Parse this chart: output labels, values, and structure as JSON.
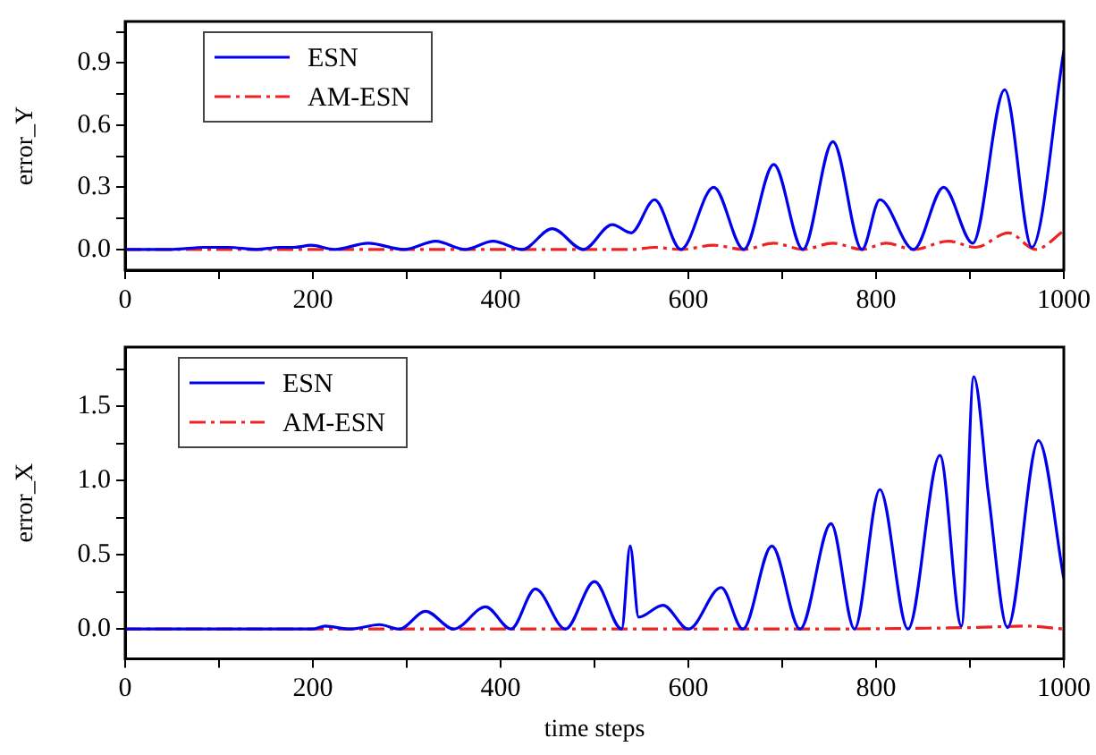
{
  "chart_data": [
    {
      "type": "line",
      "ylabel": "error_Y",
      "legend": "top left",
      "xlim": [
        0,
        1000
      ],
      "ylim": [
        -0.1,
        1.1
      ],
      "xticks": [
        0,
        {
          "value": 100,
          "label": null
        },
        200,
        {
          "value": 300,
          "label": null
        },
        400,
        {
          "value": 500,
          "label": null
        },
        600,
        {
          "value": 700,
          "label": null
        },
        800,
        {
          "value": 900,
          "label": null
        },
        1000
      ],
      "yticks": [
        {
          "value": 0,
          "label": "0.0"
        },
        {
          "value": 0.15,
          "label": null
        },
        0.3,
        {
          "value": 0.45,
          "label": null
        },
        0.6,
        {
          "value": 0.75,
          "label": null
        },
        0.9,
        {
          "value": 1.05,
          "label": null
        }
      ],
      "series": [
        {
          "name": "ESN",
          "color": "#0000ee",
          "line_style": "solid",
          "x": [
            0,
            50,
            84,
            110,
            140,
            164,
            180,
            198,
            223,
            259,
            297,
            331,
            362,
            392,
            423,
            455,
            488,
            519,
            539,
            564,
            592,
            627,
            659,
            691,
            722,
            754,
            785,
            804,
            840,
            872,
            903,
            937,
            966,
            1000
          ],
          "values": [
            0,
            0,
            0.01,
            0.01,
            0,
            0.01,
            0.01,
            0.02,
            0,
            0.03,
            0,
            0.04,
            0,
            0.04,
            0,
            0.1,
            0,
            0.12,
            0.08,
            0.24,
            0,
            0.3,
            0,
            0.41,
            0,
            0.52,
            0,
            0.24,
            0,
            0.3,
            0.03,
            0.77,
            0.01,
            0.96
          ]
        },
        {
          "name": "AM-ESN",
          "color": "#ee2222",
          "line_style": "dashdot",
          "x": [
            0,
            540,
            564,
            592,
            627,
            659,
            691,
            722,
            754,
            785,
            811,
            840,
            877,
            906,
            941,
            970,
            1000
          ],
          "values": [
            0,
            0,
            0.01,
            0,
            0.02,
            0,
            0.03,
            0,
            0.03,
            0,
            0.03,
            0,
            0.04,
            0.01,
            0.08,
            0,
            0.09
          ]
        }
      ]
    },
    {
      "type": "line",
      "ylabel": "error_X",
      "xlabel": "time steps",
      "legend": "top left",
      "xlim": [
        0,
        1000
      ],
      "ylim": [
        -0.2,
        1.9
      ],
      "xticks": [
        0,
        {
          "value": 100,
          "label": null
        },
        200,
        {
          "value": 300,
          "label": null
        },
        400,
        {
          "value": 500,
          "label": null
        },
        600,
        {
          "value": 700,
          "label": null
        },
        800,
        {
          "value": 900,
          "label": null
        },
        1000
      ],
      "yticks": [
        {
          "value": 0,
          "label": "0.0"
        },
        {
          "value": 0.25,
          "label": null
        },
        0.5,
        {
          "value": 0.75,
          "label": null
        },
        {
          "value": 1,
          "label": "1.0"
        },
        {
          "value": 1.25,
          "label": null
        },
        1.5,
        {
          "value": 1.75,
          "label": null
        }
      ],
      "series": [
        {
          "name": "ESN",
          "color": "#0000ee",
          "line_style": "solid",
          "x": [
            0,
            200,
            213,
            240,
            271,
            292,
            320,
            350,
            384,
            411,
            437,
            469,
            500,
            529,
            538,
            547,
            573,
            600,
            635,
            658,
            689,
            719,
            752,
            777,
            804,
            834,
            868,
            891,
            904,
            920,
            940,
            973,
            1000
          ],
          "values": [
            0,
            0,
            0.02,
            0,
            0.03,
            0,
            0.12,
            0,
            0.15,
            0,
            0.27,
            0,
            0.32,
            0,
            0.56,
            0.08,
            0.16,
            0,
            0.28,
            0,
            0.56,
            0,
            0.71,
            0,
            0.94,
            0,
            1.17,
            0.02,
            1.7,
            0.89,
            0.01,
            1.27,
            0.34
          ]
        },
        {
          "name": "AM-ESN",
          "color": "#ee2222",
          "line_style": "dashdot",
          "x": [
            0,
            500,
            700,
            900,
            960,
            1000
          ],
          "values": [
            0,
            0,
            0,
            0.01,
            0.02,
            0
          ]
        }
      ]
    }
  ]
}
